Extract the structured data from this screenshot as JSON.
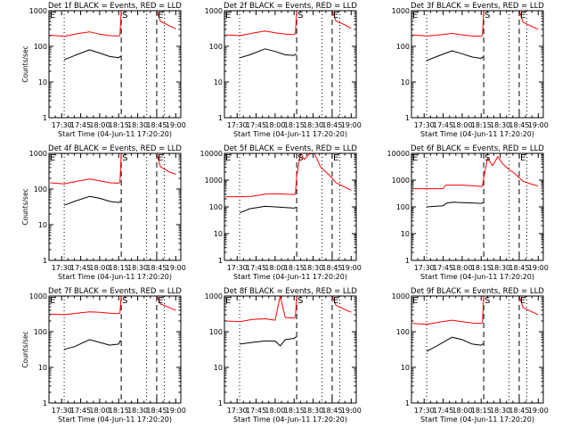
{
  "chart_data": [
    {
      "type": "line",
      "title": "Det 1f BLACK = Events, RED = LLD",
      "xlabel": "Start Time (04-Jun-11 17:20:20)",
      "ylabel": "Counts/sec",
      "yscale": "log",
      "ylim": [
        1,
        1000
      ],
      "xlim": [
        "17:20",
        "19:04"
      ],
      "xticks": [
        "17:30",
        "17:45",
        "18:00",
        "18:15",
        "18:30",
        "18:45",
        "19:00"
      ],
      "yticks": [
        "1",
        "10",
        "100",
        "1000"
      ],
      "markers": {
        "dotted": [
          "17:32",
          "18:37",
          "18:51"
        ],
        "dashed": [
          "18:17",
          "18:45"
        ],
        "letters": [
          {
            "t": "17:20",
            "label": "E"
          },
          {
            "t": "18:17",
            "label": "S"
          },
          {
            "t": "18:45",
            "label": "E"
          }
        ]
      },
      "series": [
        {
          "name": "Events",
          "color": "#000000",
          "x": [
            "17:32",
            "17:40",
            "17:52",
            "18:00",
            "18:08",
            "18:15",
            "18:16",
            "18:17"
          ],
          "values": [
            42,
            55,
            80,
            65,
            52,
            48,
            52,
            52
          ]
        },
        {
          "name": "LLD",
          "color": "#ff0000",
          "x": [
            "17:21",
            "17:32",
            "17:42",
            "17:52",
            "18:00",
            "18:08",
            "18:15",
            "18:16",
            "18:17",
            "18:45",
            "18:48",
            "18:55",
            "19:00"
          ],
          "values": [
            205,
            190,
            225,
            255,
            220,
            200,
            195,
            210,
            1000,
            1000,
            500,
            380,
            310
          ]
        }
      ]
    },
    {
      "type": "line",
      "title": "Det 2f BLACK = Events, RED = LLD",
      "xlabel": "Start Time (04-Jun-11 17:20:20)",
      "ylabel": "",
      "yscale": "log",
      "ylim": [
        1,
        1000
      ],
      "xlim": [
        "17:20",
        "19:04"
      ],
      "xticks": [
        "17:30",
        "17:45",
        "18:00",
        "18:15",
        "18:30",
        "18:45",
        "19:00"
      ],
      "yticks": [
        "1",
        "10",
        "100",
        "1000"
      ],
      "markers": {
        "dotted": [
          "17:32",
          "18:37",
          "18:51"
        ],
        "dashed": [
          "18:17",
          "18:45"
        ],
        "letters": [
          {
            "t": "17:20",
            "label": "E"
          },
          {
            "t": "18:17",
            "label": "S"
          },
          {
            "t": "18:45",
            "label": "E"
          }
        ]
      },
      "series": [
        {
          "name": "Events",
          "color": "#000000",
          "x": [
            "17:32",
            "17:40",
            "17:52",
            "18:00",
            "18:08",
            "18:15",
            "18:16",
            "18:17"
          ],
          "values": [
            48,
            58,
            85,
            72,
            58,
            56,
            60,
            60
          ]
        },
        {
          "name": "LLD",
          "color": "#ff0000",
          "x": [
            "17:21",
            "17:32",
            "17:42",
            "17:52",
            "18:00",
            "18:08",
            "18:15",
            "18:16",
            "18:17",
            "18:45",
            "18:48",
            "18:55",
            "19:00"
          ],
          "values": [
            210,
            200,
            235,
            270,
            240,
            220,
            215,
            230,
            1000,
            1000,
            520,
            400,
            320
          ]
        }
      ]
    },
    {
      "type": "line",
      "title": "Det 3f BLACK = Events, RED = LLD",
      "xlabel": "Start Time (04-Jun-11 17:20:20)",
      "ylabel": "",
      "yscale": "log",
      "ylim": [
        1,
        1000
      ],
      "xlim": [
        "17:20",
        "19:04"
      ],
      "xticks": [
        "17:30",
        "17:45",
        "18:00",
        "18:15",
        "18:30",
        "18:45",
        "19:00"
      ],
      "yticks": [
        "1",
        "10",
        "100",
        "1000"
      ],
      "markers": {
        "dotted": [
          "17:32",
          "18:37",
          "18:51"
        ],
        "dashed": [
          "18:17",
          "18:45"
        ],
        "letters": [
          {
            "t": "17:20",
            "label": "E"
          },
          {
            "t": "18:17",
            "label": "S"
          },
          {
            "t": "18:45",
            "label": "E"
          }
        ]
      },
      "series": [
        {
          "name": "Events",
          "color": "#000000",
          "x": [
            "17:32",
            "17:40",
            "17:52",
            "18:00",
            "18:08",
            "18:15",
            "18:16",
            "18:17"
          ],
          "values": [
            40,
            52,
            75,
            62,
            50,
            46,
            50,
            50
          ]
        },
        {
          "name": "LLD",
          "color": "#ff0000",
          "x": [
            "17:21",
            "17:32",
            "17:42",
            "17:52",
            "18:00",
            "18:08",
            "18:15",
            "18:16",
            "18:17",
            "18:45",
            "18:48",
            "18:55",
            "19:00"
          ],
          "values": [
            210,
            195,
            210,
            230,
            210,
            195,
            190,
            200,
            1000,
            1000,
            480,
            360,
            300
          ]
        }
      ]
    },
    {
      "type": "line",
      "title": "Det 4f BLACK = Events, RED = LLD",
      "xlabel": "Start Time (04-Jun-11 17:20:20)",
      "ylabel": "Counts/sec",
      "yscale": "log",
      "ylim": [
        1,
        1000
      ],
      "xlim": [
        "17:20",
        "19:04"
      ],
      "xticks": [
        "17:30",
        "17:45",
        "18:00",
        "18:15",
        "18:30",
        "18:45",
        "19:00"
      ],
      "yticks": [
        "1",
        "10",
        "100",
        "1000"
      ],
      "markers": {
        "dotted": [
          "17:32",
          "18:37",
          "18:51"
        ],
        "dashed": [
          "18:17",
          "18:45"
        ],
        "letters": [
          {
            "t": "17:20",
            "label": "E"
          },
          {
            "t": "18:17",
            "label": "S"
          },
          {
            "t": "18:45",
            "label": "E"
          }
        ]
      },
      "series": [
        {
          "name": "Events",
          "color": "#000000",
          "x": [
            "17:32",
            "17:40",
            "17:52",
            "18:00",
            "18:08",
            "18:15",
            "18:16",
            "18:17"
          ],
          "values": [
            35,
            45,
            62,
            55,
            45,
            42,
            45,
            45
          ]
        },
        {
          "name": "LLD",
          "color": "#ff0000",
          "x": [
            "17:21",
            "17:32",
            "17:42",
            "17:52",
            "18:00",
            "18:08",
            "18:15",
            "18:16",
            "18:17",
            "18:45",
            "18:48",
            "18:55",
            "19:00"
          ],
          "values": [
            150,
            140,
            165,
            190,
            170,
            150,
            145,
            155,
            1000,
            1000,
            420,
            300,
            260
          ]
        }
      ]
    },
    {
      "type": "line",
      "title": "Det 5f BLACK = Events, RED = LLD",
      "xlabel": "Start Time (04-Jun-11 17:20:20)",
      "ylabel": "",
      "yscale": "log",
      "ylim": [
        1,
        10000
      ],
      "xlim": [
        "17:20",
        "19:04"
      ],
      "xticks": [
        "17:30",
        "17:45",
        "18:00",
        "18:15",
        "18:30",
        "18:45",
        "19:00"
      ],
      "yticks": [
        "1",
        "10",
        "100",
        "1000",
        "10000"
      ],
      "markers": {
        "dotted": [
          "17:32",
          "18:37",
          "18:51"
        ],
        "dashed": [
          "18:17",
          "18:45"
        ],
        "letters": [
          {
            "t": "17:20",
            "label": "E"
          },
          {
            "t": "18:17",
            "label": "S"
          },
          {
            "t": "18:45",
            "label": "E"
          }
        ]
      },
      "series": [
        {
          "name": "Events",
          "color": "#000000",
          "x": [
            "17:32",
            "17:40",
            "17:52",
            "18:00",
            "18:08",
            "18:15",
            "18:16",
            "18:17"
          ],
          "values": [
            60,
            85,
            105,
            100,
            95,
            90,
            95,
            95
          ]
        },
        {
          "name": "LLD",
          "color": "#ff0000",
          "x": [
            "17:21",
            "17:32",
            "17:42",
            "17:52",
            "18:00",
            "18:08",
            "18:15",
            "18:16",
            "18:17",
            "18:20",
            "18:23",
            "18:27",
            "18:31",
            "18:36",
            "18:43",
            "18:48",
            "18:55",
            "19:00"
          ],
          "values": [
            240,
            240,
            250,
            300,
            310,
            300,
            290,
            300,
            1400,
            10000,
            6000,
            9500,
            10000,
            3000,
            1500,
            800,
            550,
            420
          ]
        }
      ]
    },
    {
      "type": "line",
      "title": "Det 6f BLACK = Events, RED = LLD",
      "xlabel": "Start Time (04-Jun-11 17:20:20)",
      "ylabel": "",
      "yscale": "log",
      "ylim": [
        1,
        10000
      ],
      "xlim": [
        "17:20",
        "19:04"
      ],
      "xticks": [
        "17:30",
        "17:45",
        "18:00",
        "18:15",
        "18:30",
        "18:45",
        "19:00"
      ],
      "yticks": [
        "1",
        "10",
        "100",
        "1000",
        "10000"
      ],
      "markers": {
        "dotted": [
          "17:32",
          "18:37",
          "18:51"
        ],
        "dashed": [
          "18:17",
          "18:45"
        ],
        "letters": [
          {
            "t": "17:20",
            "label": "E"
          },
          {
            "t": "18:17",
            "label": "S"
          },
          {
            "t": "18:45",
            "label": "E"
          }
        ]
      },
      "series": [
        {
          "name": "Events",
          "color": "#000000",
          "x": [
            "17:32",
            "17:45",
            "17:48",
            "17:53",
            "18:00",
            "18:08",
            "18:15",
            "18:16",
            "18:17"
          ],
          "values": [
            100,
            110,
            140,
            150,
            145,
            140,
            135,
            140,
            140
          ]
        },
        {
          "name": "LLD",
          "color": "#ff0000",
          "x": [
            "17:21",
            "17:32",
            "17:45",
            "17:47",
            "18:00",
            "18:08",
            "18:15",
            "18:16",
            "18:17",
            "18:20",
            "18:24",
            "18:28",
            "18:32",
            "18:37",
            "18:42",
            "18:48",
            "18:55",
            "19:00"
          ],
          "values": [
            480,
            480,
            480,
            650,
            650,
            620,
            580,
            600,
            1200,
            6500,
            3500,
            7500,
            4000,
            2500,
            1700,
            900,
            700,
            600
          ]
        }
      ]
    },
    {
      "type": "line",
      "title": "Det 7f BLACK = Events, RED = LLD",
      "xlabel": "Start Time (04-Jun-11 17:20:20)",
      "ylabel": "Counts/sec",
      "yscale": "log",
      "ylim": [
        1,
        1000
      ],
      "xlim": [
        "17:20",
        "19:04"
      ],
      "xticks": [
        "17:30",
        "17:45",
        "18:00",
        "18:15",
        "18:30",
        "18:45",
        "19:00"
      ],
      "yticks": [
        "1",
        "10",
        "100",
        "1000"
      ],
      "markers": {
        "dotted": [
          "17:32",
          "18:37",
          "18:51"
        ],
        "dashed": [
          "18:17",
          "18:45"
        ],
        "letters": [
          {
            "t": "17:20",
            "label": "E"
          },
          {
            "t": "18:17",
            "label": "S"
          },
          {
            "t": "18:45",
            "label": "E"
          }
        ]
      },
      "series": [
        {
          "name": "Events",
          "color": "#000000",
          "x": [
            "17:32",
            "17:40",
            "17:52",
            "18:00",
            "18:08",
            "18:15",
            "18:16",
            "18:17"
          ],
          "values": [
            32,
            38,
            60,
            50,
            42,
            45,
            55,
            55
          ]
        },
        {
          "name": "LLD",
          "color": "#ff0000",
          "x": [
            "17:21",
            "17:32",
            "17:42",
            "17:52",
            "18:00",
            "18:08",
            "18:15",
            "18:16",
            "18:17",
            "18:45",
            "18:48",
            "18:55",
            "19:00"
          ],
          "values": [
            310,
            300,
            330,
            360,
            350,
            330,
            320,
            340,
            1000,
            1000,
            600,
            480,
            400
          ]
        }
      ]
    },
    {
      "type": "line",
      "title": "Det 8f BLACK = Events, RED = LLD",
      "xlabel": "Start Time (04-Jun-11 17:20:20)",
      "ylabel": "",
      "yscale": "log",
      "ylim": [
        1,
        1000
      ],
      "xlim": [
        "17:20",
        "19:04"
      ],
      "xticks": [
        "17:30",
        "17:45",
        "18:00",
        "18:15",
        "18:30",
        "18:45",
        "19:00"
      ],
      "yticks": [
        "1",
        "10",
        "100",
        "1000"
      ],
      "markers": {
        "dotted": [
          "17:32",
          "18:37",
          "18:51"
        ],
        "dashed": [
          "18:17",
          "18:45"
        ],
        "letters": [
          {
            "t": "17:20",
            "label": "E"
          },
          {
            "t": "18:17",
            "label": "S"
          },
          {
            "t": "18:45",
            "label": "E"
          }
        ]
      },
      "series": [
        {
          "name": "Events",
          "color": "#000000",
          "x": [
            "17:32",
            "17:42",
            "17:52",
            "18:00",
            "18:04",
            "18:08",
            "18:15",
            "18:16",
            "18:17"
          ],
          "values": [
            45,
            50,
            55,
            55,
            40,
            60,
            65,
            70,
            70
          ]
        },
        {
          "name": "LLD",
          "color": "#ff0000",
          "x": [
            "17:21",
            "17:32",
            "17:42",
            "17:52",
            "18:00",
            "18:04",
            "18:08",
            "18:15",
            "18:16",
            "18:17",
            "18:45",
            "18:48",
            "18:55",
            "19:00"
          ],
          "values": [
            200,
            190,
            220,
            230,
            210,
            1000,
            250,
            240,
            260,
            1000,
            1000,
            550,
            420,
            350
          ]
        }
      ]
    },
    {
      "type": "line",
      "title": "Det 9f BLACK = Events, RED = LLD",
      "xlabel": "Start Time (04-Jun-11 17:20:20)",
      "ylabel": "",
      "yscale": "log",
      "ylim": [
        1,
        1000
      ],
      "xlim": [
        "17:20",
        "19:04"
      ],
      "xticks": [
        "17:30",
        "17:45",
        "18:00",
        "18:15",
        "18:30",
        "18:45",
        "19:00"
      ],
      "yticks": [
        "1",
        "10",
        "100",
        "1000"
      ],
      "markers": {
        "dotted": [
          "17:32",
          "18:37",
          "18:51"
        ],
        "dashed": [
          "18:17",
          "18:45"
        ],
        "letters": [
          {
            "t": "17:20",
            "label": "E"
          },
          {
            "t": "18:17",
            "label": "S"
          },
          {
            "t": "18:45",
            "label": "E"
          }
        ]
      },
      "series": [
        {
          "name": "Events",
          "color": "#000000",
          "x": [
            "17:32",
            "17:40",
            "17:52",
            "18:00",
            "18:08",
            "18:15",
            "18:16",
            "18:17"
          ],
          "values": [
            28,
            40,
            70,
            60,
            45,
            42,
            45,
            45
          ]
        },
        {
          "name": "LLD",
          "color": "#ff0000",
          "x": [
            "17:21",
            "17:32",
            "17:42",
            "17:52",
            "18:00",
            "18:08",
            "18:15",
            "18:16",
            "18:17",
            "18:45",
            "18:48",
            "18:55",
            "19:00"
          ],
          "values": [
            170,
            160,
            185,
            210,
            190,
            175,
            170,
            180,
            1000,
            1000,
            480,
            360,
            300
          ]
        }
      ]
    }
  ]
}
